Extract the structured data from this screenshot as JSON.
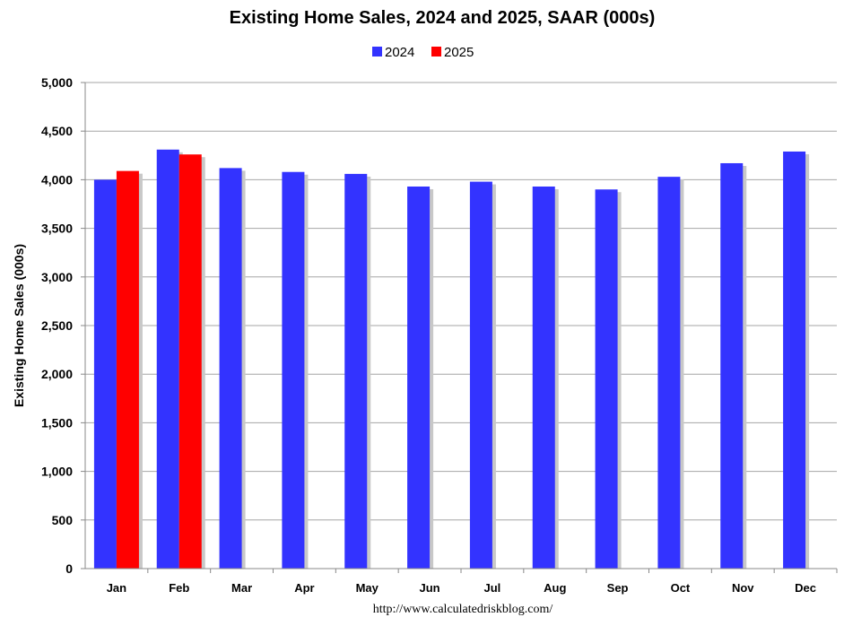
{
  "chart_data": {
    "type": "bar",
    "title": "Existing Home Sales,  2024 and 2025, SAAR (000s)",
    "xlabel": "",
    "ylabel": "Existing Home Sales (000s)",
    "ylim": [
      0,
      5000
    ],
    "yticks": [
      0,
      500,
      1000,
      1500,
      2000,
      2500,
      3000,
      3500,
      4000,
      4500,
      5000
    ],
    "ytick_labels": [
      "0",
      "500",
      "1,000",
      "1,500",
      "2,000",
      "2,500",
      "3,000",
      "3,500",
      "4,000",
      "4,500",
      "5,000"
    ],
    "categories": [
      "Jan",
      "Feb",
      "Mar",
      "Apr",
      "May",
      "Jun",
      "Jul",
      "Aug",
      "Sep",
      "Oct",
      "Nov",
      "Dec"
    ],
    "series": [
      {
        "name": "2024",
        "color": "#3333ff",
        "values": [
          4000,
          4310,
          4120,
          4080,
          4060,
          3930,
          3980,
          3930,
          3900,
          4030,
          4170,
          4290
        ]
      },
      {
        "name": "2025",
        "color": "#ff0000",
        "values": [
          4090,
          4260,
          null,
          null,
          null,
          null,
          null,
          null,
          null,
          null,
          null,
          null
        ]
      }
    ],
    "grid": true,
    "legend_position": "top-center",
    "source": "http://www.calculatedriskblog.com/"
  }
}
